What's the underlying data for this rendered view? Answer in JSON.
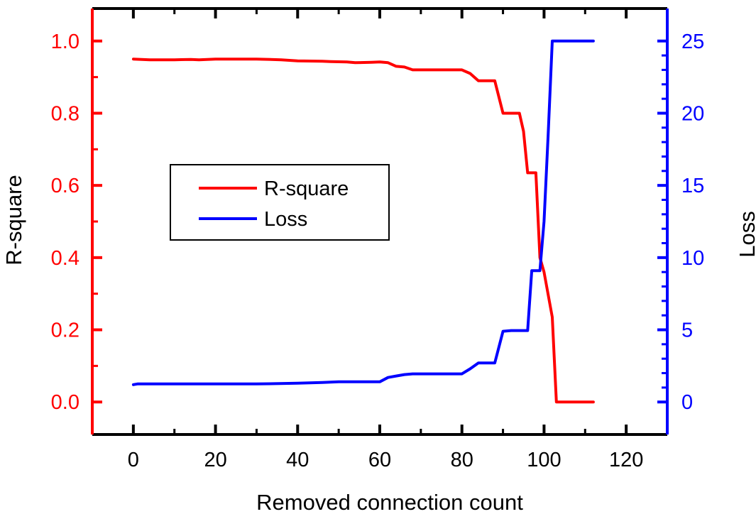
{
  "chart_data": {
    "type": "line",
    "title": "",
    "xlabel": "Removed connection count",
    "ylabel_left": "R-square",
    "ylabel_right": "Loss",
    "xlim": [
      -10,
      130
    ],
    "ylim_left": [
      -0.09,
      1.09
    ],
    "ylim_right": [
      -2.25,
      27.25
    ],
    "xticks": [
      0,
      20,
      40,
      60,
      80,
      100,
      120
    ],
    "yticks_left": [
      "0.0",
      "0.2",
      "0.4",
      "0.6",
      "0.8",
      "1.0"
    ],
    "yticks_right": [
      "0",
      "5",
      "10",
      "15",
      "20",
      "25"
    ],
    "grid": false,
    "legend_position": "center-left",
    "colors": {
      "left_axis": "#ff0000",
      "right_axis": "#0000ff",
      "frame": "#000000"
    },
    "series": [
      {
        "name": "R-square",
        "axis": "left",
        "color": "#ff0000",
        "x": [
          0,
          4,
          10,
          14,
          16,
          20,
          30,
          36,
          40,
          46,
          48,
          52,
          54,
          58,
          60,
          62,
          64,
          66,
          68,
          74,
          80,
          82,
          84,
          86,
          88,
          90,
          92,
          94,
          95,
          96,
          98,
          99,
          100,
          102,
          103,
          106,
          110,
          112
        ],
        "values": [
          0.95,
          0.948,
          0.948,
          0.949,
          0.948,
          0.95,
          0.95,
          0.948,
          0.945,
          0.944,
          0.943,
          0.942,
          0.94,
          0.941,
          0.942,
          0.94,
          0.93,
          0.928,
          0.92,
          0.92,
          0.92,
          0.91,
          0.89,
          0.89,
          0.89,
          0.8,
          0.8,
          0.8,
          0.75,
          0.635,
          0.635,
          0.4,
          0.36,
          0.235,
          0.0,
          0.0,
          0.0,
          0.0
        ]
      },
      {
        "name": "Loss",
        "axis": "right",
        "color": "#0000ff",
        "x": [
          0,
          1,
          20,
          30,
          40,
          46,
          50,
          54,
          60,
          62,
          64,
          66,
          68,
          74,
          80,
          82,
          84,
          86,
          88,
          90,
          92,
          94,
          96,
          97,
          98,
          99,
          100,
          101,
          102,
          103,
          106,
          110,
          112
        ],
        "values": [
          1.2,
          1.25,
          1.25,
          1.25,
          1.3,
          1.35,
          1.4,
          1.4,
          1.4,
          1.7,
          1.8,
          1.9,
          1.95,
          1.95,
          1.95,
          2.3,
          2.7,
          2.7,
          2.7,
          4.9,
          4.95,
          4.95,
          4.95,
          9.1,
          9.1,
          9.1,
          12.5,
          18.5,
          25.0,
          25.0,
          25.0,
          25.0,
          25.0
        ]
      }
    ]
  }
}
